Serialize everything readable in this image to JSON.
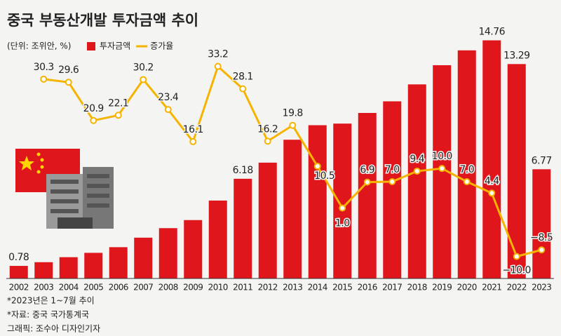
{
  "chart_data": {
    "type": "bar_line",
    "title": "중국 부동산개발 투자금액 추이",
    "subtitle": "(단위: 조위안, %)",
    "categories": [
      "2002",
      "2003",
      "2004",
      "2005",
      "2006",
      "2007",
      "2008",
      "2009",
      "2010",
      "2011",
      "2012",
      "2013",
      "2014",
      "2015",
      "2016",
      "2017",
      "2018",
      "2019",
      "2020",
      "2021",
      "2022",
      "2023"
    ],
    "series": [
      {
        "name": "투자금액",
        "color": "#e0161d",
        "values": [
          0.78,
          1.01,
          1.32,
          1.59,
          1.94,
          2.53,
          3.12,
          3.62,
          4.83,
          6.18,
          7.18,
          8.6,
          9.5,
          9.6,
          10.26,
          10.98,
          12.03,
          13.22,
          14.14,
          14.76,
          13.29,
          6.77
        ],
        "value_labels": [
          "0.78",
          null,
          null,
          null,
          null,
          null,
          null,
          null,
          null,
          "6.18",
          null,
          null,
          null,
          null,
          null,
          null,
          null,
          null,
          null,
          "14.76",
          "13.29",
          "6.77"
        ]
      },
      {
        "name": "증가율",
        "color": "#f5b400",
        "axis": "y2",
        "values": [
          null,
          30.3,
          29.6,
          20.9,
          22.1,
          30.2,
          23.4,
          16.1,
          33.2,
          28.1,
          16.2,
          19.8,
          10.5,
          1.0,
          6.9,
          7.0,
          9.4,
          10.0,
          7.0,
          4.4,
          -10.0,
          -8.5
        ],
        "value_labels": [
          null,
          "30.3",
          "29.6",
          "20.9",
          "22.1",
          "30.2",
          "23.4",
          "16.1",
          "33.2",
          "28.1",
          "16.2",
          "19.8",
          "10.5",
          "1.0",
          "6.9",
          "7.0",
          "9.4",
          "10.0",
          "7.0",
          "4.4",
          "−10.0",
          "−8.5"
        ]
      }
    ],
    "ylim": [
      0,
      15
    ],
    "y2lim": [
      -15,
      40
    ],
    "notes": [
      "*2023년은 1~7월 추이",
      "*자료: 중국 국가통계국",
      "그래픽: 조수아 디자인기자"
    ]
  }
}
